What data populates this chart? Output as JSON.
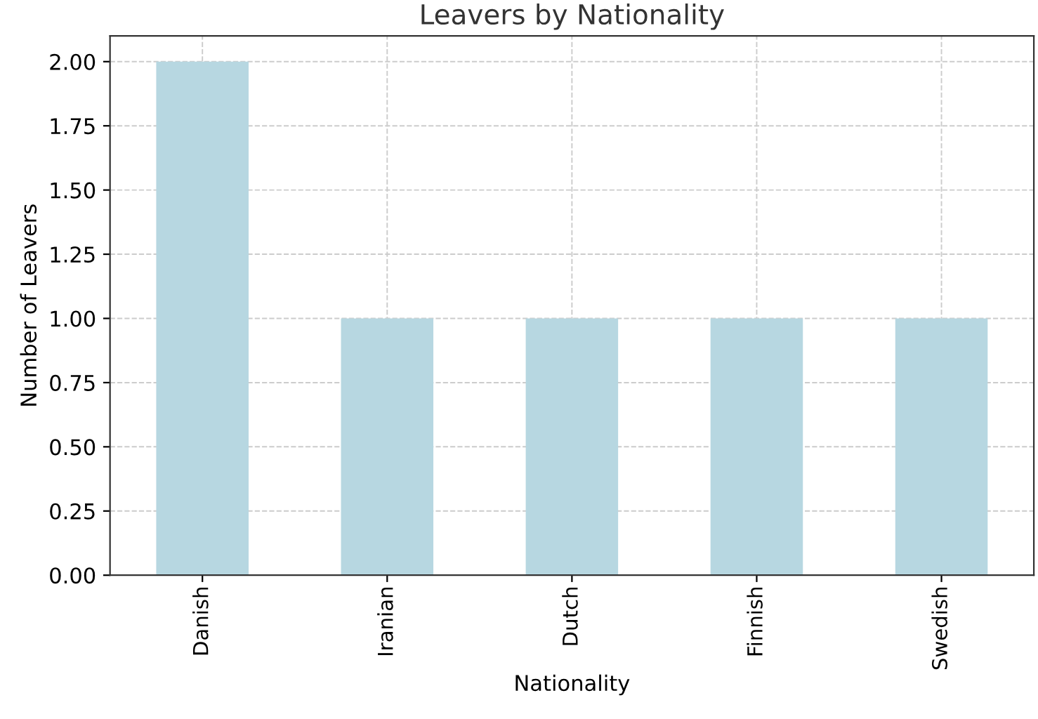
{
  "chart_data": {
    "type": "bar",
    "title": "Leavers by Nationality",
    "xlabel": "Nationality",
    "ylabel": "Number of Leavers",
    "categories": [
      "Danish",
      "Iranian",
      "Dutch",
      "Finnish",
      "Swedish"
    ],
    "values": [
      2,
      1,
      1,
      1,
      1
    ],
    "color": "#b7d7e1",
    "ylim": [
      0,
      2.1
    ],
    "yticks": [
      {
        "value": 0,
        "label": "0.00"
      },
      {
        "value": 0.25,
        "label": "0.25"
      },
      {
        "value": 0.5,
        "label": "0.50"
      },
      {
        "value": 0.75,
        "label": "0.75"
      },
      {
        "value": 1,
        "label": "1.00"
      },
      {
        "value": 1.25,
        "label": "1.25"
      },
      {
        "value": 1.5,
        "label": "1.50"
      },
      {
        "value": 1.75,
        "label": "1.75"
      },
      {
        "value": 2,
        "label": "2.00"
      }
    ],
    "grid": true
  }
}
